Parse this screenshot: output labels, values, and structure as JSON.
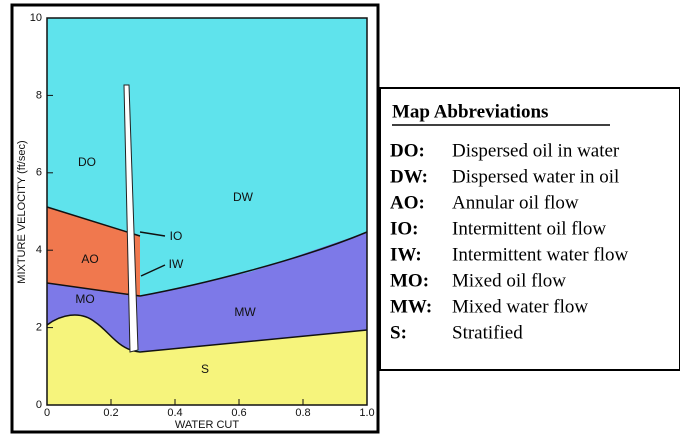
{
  "plot": {
    "y_axis_label": "MIXTURE VELOCITY (ft/sec)",
    "x_axis_label": "WATER CUT",
    "y_ticks": [
      "0",
      "2",
      "4",
      "6",
      "8",
      "10"
    ],
    "x_ticks": [
      "0",
      "0.2",
      "0.4",
      "0.6",
      "0.8",
      "1.0"
    ],
    "regions": [
      "DO",
      "DW",
      "AO",
      "IO",
      "IW",
      "MO",
      "MW",
      "S"
    ]
  },
  "legend": {
    "title": "Map Abbreviations",
    "entries": [
      {
        "abbr": "DO:",
        "text": "Dispersed oil in water"
      },
      {
        "abbr": "DW:",
        "text": "Dispersed water in oil"
      },
      {
        "abbr": "AO:",
        "text": "Annular oil flow"
      },
      {
        "abbr": "IO:",
        "text": "Intermittent oil flow"
      },
      {
        "abbr": "IW:",
        "text": "Intermittent water flow"
      },
      {
        "abbr": "MO:",
        "text": "Mixed oil flow"
      },
      {
        "abbr": "MW:",
        "text": "Mixed water flow"
      },
      {
        "abbr": "S:",
        "text": "Stratified"
      }
    ]
  }
}
